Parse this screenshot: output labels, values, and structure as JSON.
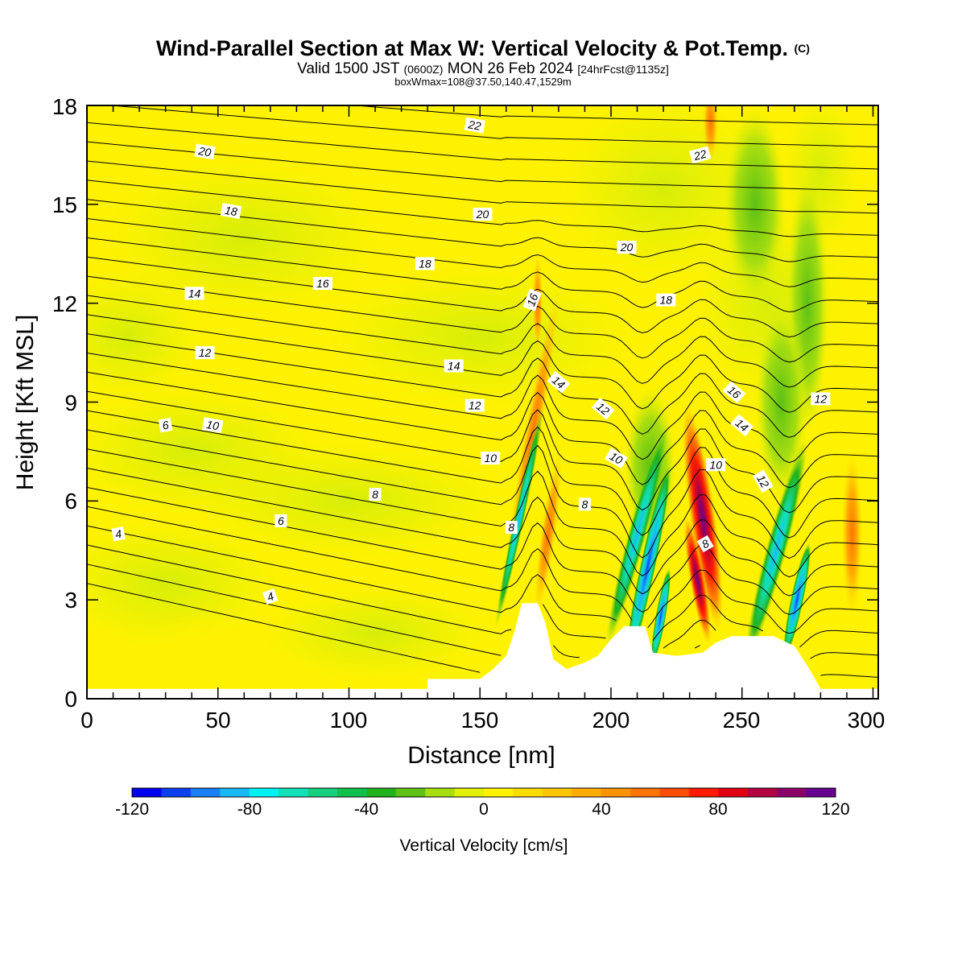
{
  "chart_data": {
    "type": "heatmap",
    "title": "Wind-Parallel Section at Max W: Vertical Velocity & Pot.Temp.",
    "title_mark": "(C)",
    "subtitle_main": "Valid 1500 JST",
    "subtitle_utc": "(0600Z)",
    "subtitle_date": "MON 26 Feb 2024",
    "subtitle_fcst": "[24hrFcst@1135z]",
    "subtitle2": "boxWmax=108@37.50,140.47,1529m",
    "xlabel": "Distance [nm]",
    "ylabel": "Height [Kft MSL]",
    "xlim": [
      0,
      302
    ],
    "ylim": [
      0,
      18
    ],
    "x_ticks": [
      "0",
      "50",
      "100",
      "150",
      "200",
      "250",
      "300"
    ],
    "y_ticks": [
      "0",
      "3",
      "6",
      "9",
      "12",
      "15",
      "18"
    ],
    "colorbar": {
      "title": "Vertical Velocity [cm/s]",
      "range": [
        -120,
        120
      ],
      "tick_labels": [
        "-120",
        "-80",
        "-40",
        "0",
        "40",
        "80",
        "120"
      ],
      "colors": [
        "#0000ee",
        "#0a40f0",
        "#1a7ff5",
        "#17b9f7",
        "#00f2f2",
        "#12e0b8",
        "#16cf7e",
        "#10c04c",
        "#21b21c",
        "#5cc114",
        "#a7de10",
        "#e0f006",
        "#fff200",
        "#ffdc00",
        "#ffc600",
        "#ffac00",
        "#ff9200",
        "#ff7400",
        "#ff4d00",
        "#ff1a00",
        "#e00012",
        "#b20040",
        "#8a0068",
        "#66008e"
      ]
    },
    "series": [
      {
        "name": "Vertical Velocity [cm/s]",
        "cells": [
          {
            "x": 168,
            "z": 7.5,
            "w": 45
          },
          {
            "x": 175,
            "z": 5.0,
            "w": 40
          },
          {
            "x": 165,
            "z": 5.5,
            "w": -40
          },
          {
            "x": 172,
            "z": 11.5,
            "w": 25
          },
          {
            "x": 205,
            "z": 5.0,
            "w": -50
          },
          {
            "x": 213,
            "z": 4.0,
            "w": -100
          },
          {
            "x": 218,
            "z": 2.5,
            "w": -80
          },
          {
            "x": 235,
            "z": 5.0,
            "w": 90
          },
          {
            "x": 233,
            "z": 3.5,
            "w": 110
          },
          {
            "x": 240,
            "z": 4.5,
            "w": 60
          },
          {
            "x": 262,
            "z": 4.0,
            "w": -60
          },
          {
            "x": 270,
            "z": 2.8,
            "w": -85
          },
          {
            "x": 290,
            "z": 5.0,
            "w": 25
          },
          {
            "x": 238,
            "z": 17.5,
            "w": 20
          }
        ]
      },
      {
        "name": "Pot.Temp. (C)",
        "contour_labels": [
          "4",
          "4",
          "6",
          "6",
          "8",
          "8",
          "8",
          "8",
          "10",
          "10",
          "10",
          "10",
          "12",
          "12",
          "12",
          "12",
          "12",
          "14",
          "14",
          "14",
          "14",
          "16",
          "16",
          "16",
          "18",
          "18",
          "18",
          "20",
          "20",
          "20",
          "22",
          "22"
        ]
      }
    ],
    "terrain": [
      [
        0,
        0.3
      ],
      [
        130,
        0.3
      ],
      [
        130,
        0.6
      ],
      [
        150,
        0.6
      ],
      [
        155,
        0.9
      ],
      [
        160,
        1.3
      ],
      [
        163,
        2.0
      ],
      [
        166,
        2.9
      ],
      [
        172,
        2.9
      ],
      [
        175,
        2.3
      ],
      [
        178,
        1.2
      ],
      [
        183,
        0.9
      ],
      [
        190,
        1.1
      ],
      [
        195,
        1.3
      ],
      [
        200,
        1.8
      ],
      [
        205,
        2.2
      ],
      [
        213,
        2.2
      ],
      [
        216,
        1.4
      ],
      [
        225,
        1.3
      ],
      [
        235,
        1.4
      ],
      [
        240,
        1.7
      ],
      [
        246,
        1.9
      ],
      [
        262,
        1.9
      ],
      [
        270,
        1.6
      ],
      [
        275,
        1.0
      ],
      [
        280,
        0.3
      ],
      [
        302,
        0.3
      ]
    ],
    "grid": false,
    "legend": "bottom"
  }
}
